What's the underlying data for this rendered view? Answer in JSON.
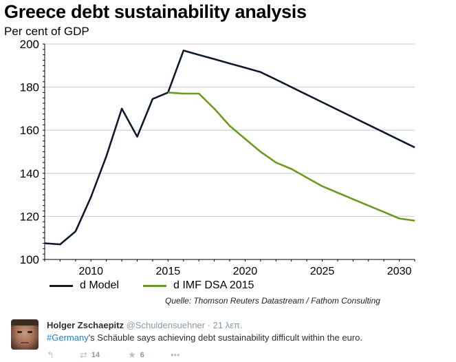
{
  "chart_data": {
    "type": "line",
    "title": "Greece debt sustainability analysis",
    "ylabel": "Per cent of GDP",
    "xlabel": "",
    "xlim": [
      2007,
      2031
    ],
    "ylim": [
      100,
      200
    ],
    "yticks": [
      100,
      120,
      140,
      160,
      180,
      200
    ],
    "ytick_labels": [
      "100",
      "120",
      "140",
      "160",
      "180",
      "200"
    ],
    "xticks": [
      2010,
      2015,
      2020,
      2025,
      2030
    ],
    "xtick_labels": [
      "2010",
      "2015",
      "2020",
      "2025",
      "2030"
    ],
    "grid": "horizontal",
    "legend_position": "bottom",
    "series": [
      {
        "name": "d Model",
        "color": "#0e1a2b",
        "x": [
          2007,
          2008,
          2009,
          2010,
          2011,
          2012,
          2013,
          2014,
          2015,
          2016,
          2017,
          2018,
          2019,
          2020,
          2021,
          2022,
          2023,
          2024,
          2025,
          2026,
          2027,
          2028,
          2029,
          2030,
          2031
        ],
        "values": [
          107.5,
          107,
          113,
          129,
          148,
          170,
          157,
          174.5,
          177.5,
          197,
          195,
          193,
          191,
          189,
          187,
          183.5,
          180,
          176.5,
          173,
          169.5,
          166,
          162.5,
          159,
          155.5,
          152
        ]
      },
      {
        "name": "d IMF DSA 2015",
        "color": "#6a9a1f",
        "x": [
          2015,
          2016,
          2017,
          2018,
          2019,
          2020,
          2021,
          2022,
          2023,
          2024,
          2025,
          2026,
          2027,
          2028,
          2029,
          2030,
          2031
        ],
        "values": [
          177.5,
          177,
          177,
          170,
          162,
          156,
          150,
          145,
          142,
          138,
          134,
          131,
          128,
          125,
          122,
          119,
          118
        ]
      }
    ],
    "source": "Quelle: Thomson Reuters Datastream / Fathom Consulting"
  },
  "tweet": {
    "author_name": "Holger Zschaepitz",
    "author_handle": "@Schuldensuehner",
    "time": " · 21 λεπ.",
    "hashtag": "#Germany",
    "text_rest": "'s Schäuble says achieving debt sustainability difficult within the euro.",
    "reply_icon": "reply-icon",
    "retweet_icon": "retweet-icon",
    "retweet_count": "14",
    "favorite_icon": "star-icon",
    "favorite_count": "6",
    "more_icon": "more-icon",
    "hashtag_color": "#2b7bb9"
  }
}
